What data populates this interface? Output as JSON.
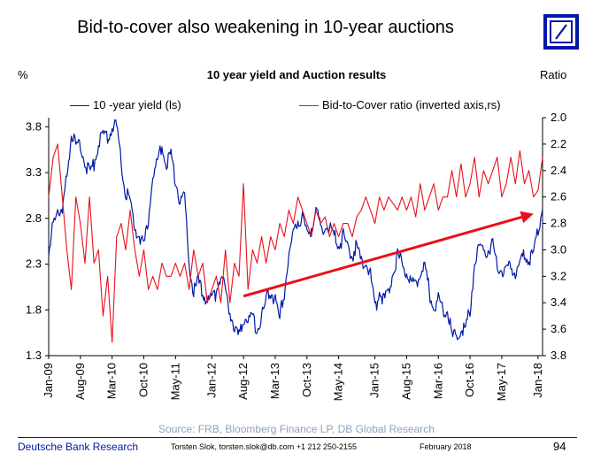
{
  "slide": {
    "title": "Bid-to-cover also weakening in 10-year auctions",
    "source": "Source: FRB, Bloomberg Finance LP, DB Global Research",
    "footer_org": "Deutsche Bank Research",
    "footer_contact": "Torsten Slok, torsten.slok@db.com  +1 212 250-2155",
    "footer_date": "February 2018",
    "page_number": "94"
  },
  "colors": {
    "yield_line": "#0018a8",
    "bid_line": "#e8101a",
    "arrow": "#e8101a",
    "brand": "#0018a8",
    "source_text": "#8ea1c4"
  },
  "logo_icon": "deutsche-bank-slash-square-icon",
  "chart_data": {
    "type": "line",
    "title": "10 year yield and Auction results",
    "y_left_label": "%",
    "y_right_label": "Ratio",
    "y_left_ticks": [
      "3.8",
      "3.3",
      "2.8",
      "2.3",
      "1.8",
      "1.3"
    ],
    "y_left_range": [
      1.3,
      3.9
    ],
    "y_right_ticks": [
      "2.0",
      "2.2",
      "2.4",
      "2.6",
      "2.8",
      "3.0",
      "3.2",
      "3.4",
      "3.6",
      "3.8"
    ],
    "y_right_range": [
      3.8,
      2.0
    ],
    "y_right_inverted": true,
    "x_ticks": [
      "Jan-09",
      "Aug-09",
      "Mar-10",
      "Oct-10",
      "May-11",
      "Jan-12",
      "Aug-12",
      "Mar-13",
      "Oct-13",
      "May-14",
      "Jan-15",
      "Aug-15",
      "Mar-16",
      "Oct-16",
      "May-17",
      "Jan-18"
    ],
    "x_range": [
      "2009-01",
      "2018-02"
    ],
    "grid": false,
    "legend_position": "top",
    "series": [
      {
        "name": "10 -year yield (ls)",
        "axis": "left",
        "points": [
          [
            "2009-01",
            2.3
          ],
          [
            "2009-02",
            2.8
          ],
          [
            "2009-03",
            2.9
          ],
          [
            "2009-04",
            2.8
          ],
          [
            "2009-05",
            3.3
          ],
          [
            "2009-06",
            3.7
          ],
          [
            "2009-07",
            3.6
          ],
          [
            "2009-08",
            3.6
          ],
          [
            "2009-09",
            3.4
          ],
          [
            "2009-10",
            3.3
          ],
          [
            "2009-11",
            3.4
          ],
          [
            "2009-12",
            3.6
          ],
          [
            "2010-01",
            3.7
          ],
          [
            "2010-02",
            3.7
          ],
          [
            "2010-03",
            3.8
          ],
          [
            "2010-04",
            3.8
          ],
          [
            "2010-05",
            3.4
          ],
          [
            "2010-06",
            3.1
          ],
          [
            "2010-07",
            3.0
          ],
          [
            "2010-08",
            2.7
          ],
          [
            "2010-09",
            2.6
          ],
          [
            "2010-10",
            2.5
          ],
          [
            "2010-11",
            2.8
          ],
          [
            "2010-12",
            3.3
          ],
          [
            "2011-01",
            3.4
          ],
          [
            "2011-02",
            3.6
          ],
          [
            "2011-03",
            3.4
          ],
          [
            "2011-04",
            3.5
          ],
          [
            "2011-05",
            3.2
          ],
          [
            "2011-06",
            3.0
          ],
          [
            "2011-07",
            3.0
          ],
          [
            "2011-08",
            2.3
          ],
          [
            "2011-09",
            2.0
          ],
          [
            "2011-10",
            2.1
          ],
          [
            "2011-11",
            2.0
          ],
          [
            "2011-12",
            1.9
          ],
          [
            "2012-01",
            1.9
          ],
          [
            "2012-02",
            2.0
          ],
          [
            "2012-03",
            2.2
          ],
          [
            "2012-04",
            2.0
          ],
          [
            "2012-05",
            1.8
          ],
          [
            "2012-06",
            1.6
          ],
          [
            "2012-07",
            1.5
          ],
          [
            "2012-08",
            1.7
          ],
          [
            "2012-09",
            1.7
          ],
          [
            "2012-10",
            1.7
          ],
          [
            "2012-11",
            1.6
          ],
          [
            "2012-12",
            1.7
          ],
          [
            "2013-01",
            1.9
          ],
          [
            "2013-02",
            2.0
          ],
          [
            "2013-03",
            1.9
          ],
          [
            "2013-04",
            1.7
          ],
          [
            "2013-05",
            2.0
          ],
          [
            "2013-06",
            2.4
          ],
          [
            "2013-07",
            2.6
          ],
          [
            "2013-08",
            2.8
          ],
          [
            "2013-09",
            2.8
          ],
          [
            "2013-10",
            2.6
          ],
          [
            "2013-11",
            2.7
          ],
          [
            "2013-12",
            2.9
          ],
          [
            "2014-01",
            2.7
          ],
          [
            "2014-02",
            2.7
          ],
          [
            "2014-03",
            2.7
          ],
          [
            "2014-04",
            2.6
          ],
          [
            "2014-05",
            2.5
          ],
          [
            "2014-06",
            2.6
          ],
          [
            "2014-07",
            2.5
          ],
          [
            "2014-08",
            2.4
          ],
          [
            "2014-09",
            2.5
          ],
          [
            "2014-10",
            2.3
          ],
          [
            "2014-11",
            2.3
          ],
          [
            "2014-12",
            2.2
          ],
          [
            "2015-01",
            1.8
          ],
          [
            "2015-02",
            2.0
          ],
          [
            "2015-03",
            1.9
          ],
          [
            "2015-04",
            2.0
          ],
          [
            "2015-05",
            2.2
          ],
          [
            "2015-06",
            2.4
          ],
          [
            "2015-07",
            2.3
          ],
          [
            "2015-08",
            2.2
          ],
          [
            "2015-09",
            2.1
          ],
          [
            "2015-10",
            2.1
          ],
          [
            "2015-11",
            2.2
          ],
          [
            "2015-12",
            2.3
          ],
          [
            "2016-01",
            2.0
          ],
          [
            "2016-02",
            1.8
          ],
          [
            "2016-03",
            1.9
          ],
          [
            "2016-04",
            1.8
          ],
          [
            "2016-05",
            1.8
          ],
          [
            "2016-06",
            1.5
          ],
          [
            "2016-07",
            1.5
          ],
          [
            "2016-08",
            1.6
          ],
          [
            "2016-09",
            1.6
          ],
          [
            "2016-10",
            1.8
          ],
          [
            "2016-11",
            2.3
          ],
          [
            "2016-12",
            2.5
          ],
          [
            "2017-01",
            2.45
          ],
          [
            "2017-02",
            2.45
          ],
          [
            "2017-03",
            2.5
          ],
          [
            "2017-04",
            2.3
          ],
          [
            "2017-05",
            2.25
          ],
          [
            "2017-06",
            2.2
          ],
          [
            "2017-07",
            2.3
          ],
          [
            "2017-08",
            2.2
          ],
          [
            "2017-09",
            2.3
          ],
          [
            "2017-10",
            2.4
          ],
          [
            "2017-11",
            2.35
          ],
          [
            "2017-12",
            2.4
          ],
          [
            "2018-01",
            2.7
          ],
          [
            "2018-02",
            2.9
          ]
        ]
      },
      {
        "name": "Bid-to-Cover ratio (inverted axis,rs)",
        "axis": "right",
        "points": [
          [
            "2009-01",
            2.6
          ],
          [
            "2009-02",
            2.3
          ],
          [
            "2009-03",
            2.2
          ],
          [
            "2009-04",
            2.6
          ],
          [
            "2009-05",
            3.0
          ],
          [
            "2009-06",
            3.3
          ],
          [
            "2009-07",
            2.6
          ],
          [
            "2009-08",
            2.8
          ],
          [
            "2009-09",
            3.1
          ],
          [
            "2009-10",
            2.6
          ],
          [
            "2009-11",
            3.1
          ],
          [
            "2009-12",
            3.0
          ],
          [
            "2010-01",
            3.5
          ],
          [
            "2010-02",
            3.2
          ],
          [
            "2010-03",
            3.7
          ],
          [
            "2010-04",
            2.9
          ],
          [
            "2010-05",
            2.8
          ],
          [
            "2010-06",
            3.0
          ],
          [
            "2010-07",
            2.7
          ],
          [
            "2010-08",
            3.0
          ],
          [
            "2010-09",
            3.2
          ],
          [
            "2010-10",
            3.0
          ],
          [
            "2010-11",
            3.3
          ],
          [
            "2010-12",
            3.2
          ],
          [
            "2011-01",
            3.3
          ],
          [
            "2011-02",
            3.1
          ],
          [
            "2011-03",
            3.2
          ],
          [
            "2011-04",
            3.2
          ],
          [
            "2011-05",
            3.1
          ],
          [
            "2011-06",
            3.2
          ],
          [
            "2011-07",
            3.1
          ],
          [
            "2011-08",
            3.3
          ],
          [
            "2011-09",
            3.0
          ],
          [
            "2011-10",
            3.2
          ],
          [
            "2011-11",
            3.1
          ],
          [
            "2011-12",
            3.4
          ],
          [
            "2012-01",
            3.3
          ],
          [
            "2012-02",
            3.2
          ],
          [
            "2012-03",
            3.4
          ],
          [
            "2012-04",
            3.0
          ],
          [
            "2012-05",
            3.4
          ],
          [
            "2012-06",
            3.1
          ],
          [
            "2012-07",
            3.2
          ],
          [
            "2012-08",
            2.5
          ],
          [
            "2012-09",
            3.3
          ],
          [
            "2012-10",
            3.0
          ],
          [
            "2012-11",
            3.1
          ],
          [
            "2012-12",
            2.9
          ],
          [
            "2013-01",
            3.1
          ],
          [
            "2013-02",
            2.9
          ],
          [
            "2013-03",
            3.0
          ],
          [
            "2013-04",
            2.8
          ],
          [
            "2013-05",
            2.9
          ],
          [
            "2013-06",
            2.7
          ],
          [
            "2013-07",
            2.8
          ],
          [
            "2013-08",
            2.6
          ],
          [
            "2013-09",
            2.7
          ],
          [
            "2013-10",
            2.8
          ],
          [
            "2013-11",
            2.9
          ],
          [
            "2013-12",
            2.7
          ],
          [
            "2014-01",
            2.8
          ],
          [
            "2014-02",
            2.75
          ],
          [
            "2014-03",
            2.9
          ],
          [
            "2014-04",
            2.8
          ],
          [
            "2014-05",
            2.9
          ],
          [
            "2014-06",
            2.8
          ],
          [
            "2014-07",
            2.8
          ],
          [
            "2014-08",
            2.9
          ],
          [
            "2014-09",
            2.75
          ],
          [
            "2014-10",
            2.7
          ],
          [
            "2014-11",
            2.6
          ],
          [
            "2014-12",
            2.7
          ],
          [
            "2015-01",
            2.8
          ],
          [
            "2015-02",
            2.6
          ],
          [
            "2015-03",
            2.7
          ],
          [
            "2015-04",
            2.6
          ],
          [
            "2015-05",
            2.65
          ],
          [
            "2015-06",
            2.7
          ],
          [
            "2015-07",
            2.6
          ],
          [
            "2015-08",
            2.7
          ],
          [
            "2015-09",
            2.6
          ],
          [
            "2015-10",
            2.75
          ],
          [
            "2015-11",
            2.5
          ],
          [
            "2015-12",
            2.7
          ],
          [
            "2016-01",
            2.6
          ],
          [
            "2016-02",
            2.5
          ],
          [
            "2016-03",
            2.7
          ],
          [
            "2016-04",
            2.6
          ],
          [
            "2016-05",
            2.6
          ],
          [
            "2016-06",
            2.4
          ],
          [
            "2016-07",
            2.6
          ],
          [
            "2016-08",
            2.35
          ],
          [
            "2016-09",
            2.6
          ],
          [
            "2016-10",
            2.5
          ],
          [
            "2016-11",
            2.3
          ],
          [
            "2016-12",
            2.6
          ],
          [
            "2017-01",
            2.4
          ],
          [
            "2017-02",
            2.5
          ],
          [
            "2017-03",
            2.4
          ],
          [
            "2017-04",
            2.3
          ],
          [
            "2017-05",
            2.6
          ],
          [
            "2017-06",
            2.5
          ],
          [
            "2017-07",
            2.3
          ],
          [
            "2017-08",
            2.5
          ],
          [
            "2017-09",
            2.25
          ],
          [
            "2017-10",
            2.5
          ],
          [
            "2017-11",
            2.4
          ],
          [
            "2017-12",
            2.6
          ],
          [
            "2018-01",
            2.55
          ],
          [
            "2018-02",
            2.3
          ]
        ]
      }
    ],
    "annotations": [
      {
        "type": "arrow",
        "from": [
          "2012-08",
          1.95
        ],
        "to": [
          "2017-12",
          2.85
        ]
      }
    ]
  }
}
